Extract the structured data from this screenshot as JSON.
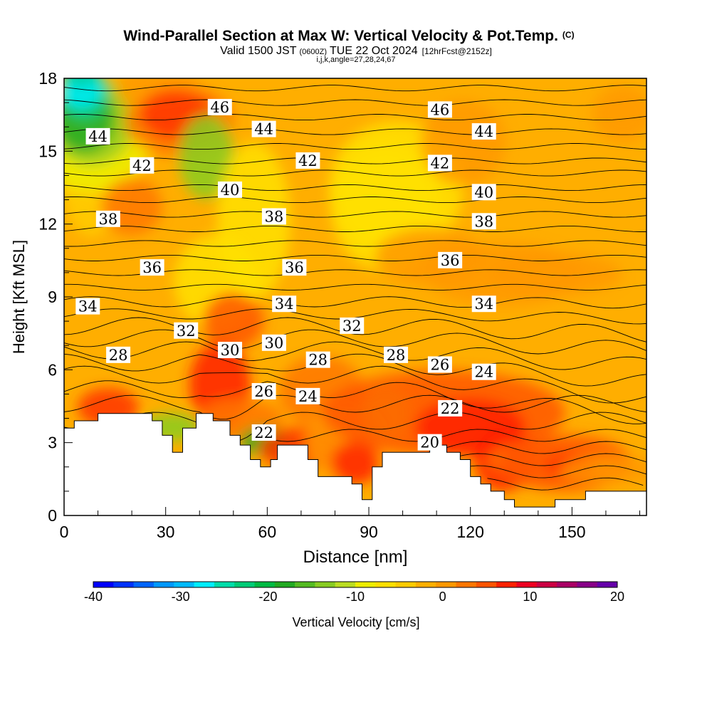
{
  "chart_data": {
    "type": "heatmap",
    "title": "Wind-Parallel Section at Max W: Vertical Velocity & Pot.Temp.",
    "title_tag": "(C)",
    "subtitle": {
      "valid_prefix": "Valid 1500 JST",
      "utc": "(0600Z)",
      "date": "TUE 22 Oct 2024",
      "forecast": "[12hrFcst@2152z]",
      "indices": "i,j,k,angle=27,28,24,67"
    },
    "xlabel": "Distance [nm]",
    "ylabel": "Height [Kft MSL]",
    "xlim": [
      0,
      172
    ],
    "ylim": [
      0,
      18
    ],
    "x_ticks": [
      0,
      30,
      60,
      90,
      120,
      150
    ],
    "y_ticks": [
      0,
      3,
      6,
      9,
      12,
      15,
      18
    ],
    "grid": false,
    "colorbar": {
      "label": "Vertical Velocity [cm/s]",
      "min": -40,
      "max": 20,
      "tick_labels": [
        "-40",
        "-30",
        "-20",
        "-10",
        "0",
        "10",
        "20"
      ],
      "colors": [
        "#0000ff",
        "#0033ff",
        "#0066ff",
        "#0099ff",
        "#00bbff",
        "#00eeff",
        "#00ddaa",
        "#00cc77",
        "#00bb44",
        "#22aa22",
        "#55bb22",
        "#88cc22",
        "#bbdd22",
        "#eeee00",
        "#ffe000",
        "#ffcc00",
        "#ffb000",
        "#ff9900",
        "#ff7700",
        "#ff5500",
        "#ff2200",
        "#ee0022",
        "#cc0044",
        "#aa0066",
        "#880088",
        "#6600aa"
      ]
    },
    "theta_contours": {
      "units": "C",
      "labels": [
        {
          "value": "46",
          "x": 46,
          "y": 16.8
        },
        {
          "value": "46",
          "x": 111,
          "y": 16.7
        },
        {
          "value": "44",
          "x": 10,
          "y": 15.6
        },
        {
          "value": "44",
          "x": 59,
          "y": 15.9
        },
        {
          "value": "44",
          "x": 124,
          "y": 15.8
        },
        {
          "value": "42",
          "x": 23,
          "y": 14.4
        },
        {
          "value": "42",
          "x": 72,
          "y": 14.6
        },
        {
          "value": "42",
          "x": 111,
          "y": 14.5
        },
        {
          "value": "40",
          "x": 49,
          "y": 13.4
        },
        {
          "value": "40",
          "x": 124,
          "y": 13.3
        },
        {
          "value": "38",
          "x": 13,
          "y": 12.2
        },
        {
          "value": "38",
          "x": 62,
          "y": 12.3
        },
        {
          "value": "38",
          "x": 124,
          "y": 12.1
        },
        {
          "value": "36",
          "x": 26,
          "y": 10.2
        },
        {
          "value": "36",
          "x": 68,
          "y": 10.2
        },
        {
          "value": "36",
          "x": 114,
          "y": 10.5
        },
        {
          "value": "34",
          "x": 7,
          "y": 8.6
        },
        {
          "value": "34",
          "x": 65,
          "y": 8.7
        },
        {
          "value": "34",
          "x": 124,
          "y": 8.7
        },
        {
          "value": "32",
          "x": 36,
          "y": 7.6
        },
        {
          "value": "32",
          "x": 85,
          "y": 7.8
        },
        {
          "value": "30",
          "x": 49,
          "y": 6.8
        },
        {
          "value": "30",
          "x": 62,
          "y": 7.1
        },
        {
          "value": "28",
          "x": 16,
          "y": 6.6
        },
        {
          "value": "28",
          "x": 75,
          "y": 6.4
        },
        {
          "value": "28",
          "x": 98,
          "y": 6.6
        },
        {
          "value": "26",
          "x": 59,
          "y": 5.1
        },
        {
          "value": "26",
          "x": 111,
          "y": 6.2
        },
        {
          "value": "24",
          "x": 72,
          "y": 4.9
        },
        {
          "value": "24",
          "x": 124,
          "y": 5.9
        },
        {
          "value": "22",
          "x": 59,
          "y": 3.4
        },
        {
          "value": "22",
          "x": 114,
          "y": 4.4
        },
        {
          "value": "20",
          "x": 108,
          "y": 3.0
        }
      ]
    }
  }
}
